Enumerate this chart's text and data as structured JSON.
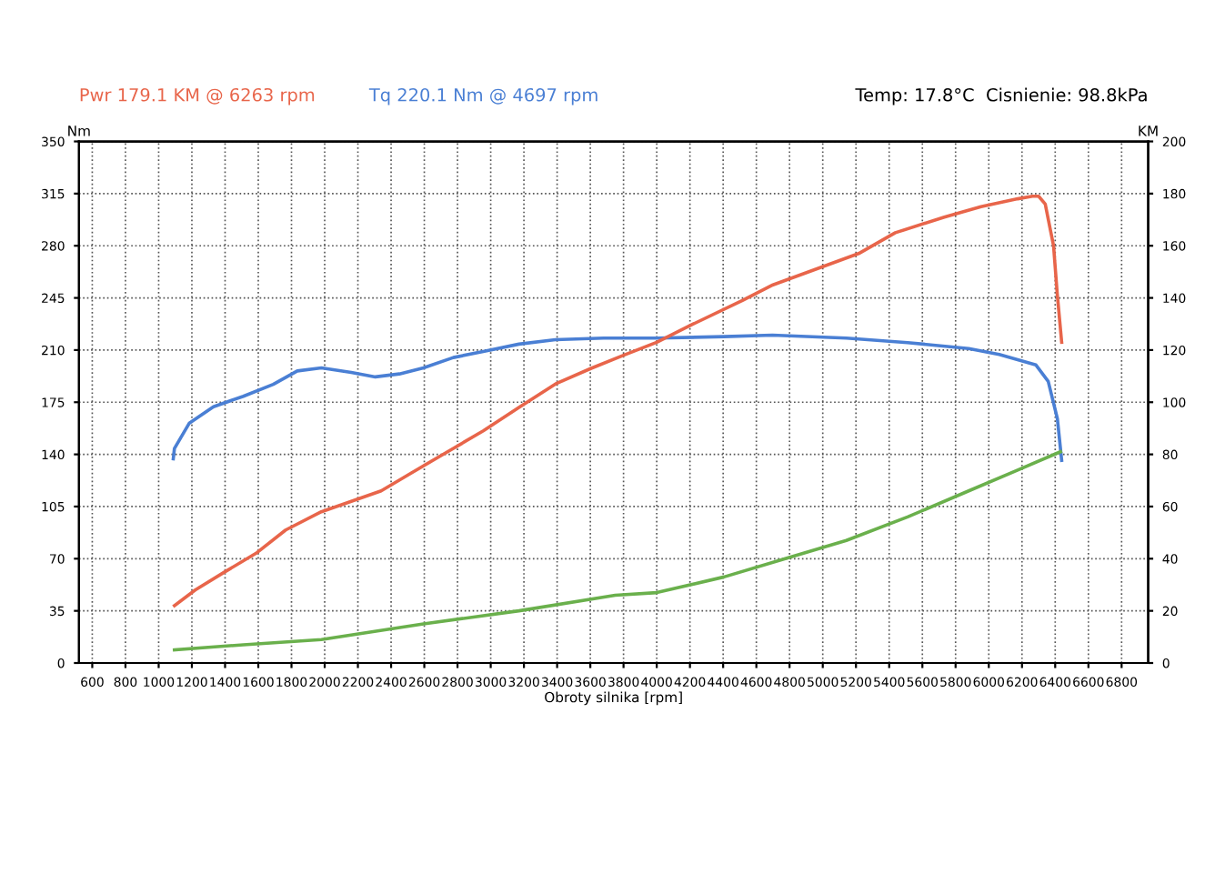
{
  "chart_data": {
    "type": "line",
    "xlabel": "Obroty silnika [rpm]",
    "ylabel": "Nm",
    "y2label": "KM",
    "annotations": [
      "Temp: 17.8°C  Cisnienie: 98.8kPa"
    ],
    "xlim": [
      520,
      6960
    ],
    "xticks": [
      600,
      800,
      1000,
      1200,
      1400,
      1600,
      1800,
      2000,
      2200,
      2400,
      2600,
      2800,
      3000,
      3200,
      3400,
      3600,
      3800,
      4000,
      4200,
      4400,
      4600,
      4800,
      5000,
      5200,
      5400,
      5600,
      5800,
      6000,
      6200,
      6400,
      6600,
      6800
    ],
    "ylim": [
      0,
      350
    ],
    "yticks": [
      0,
      35,
      70,
      105,
      140,
      175,
      210,
      245,
      280,
      315,
      350
    ],
    "y2lim": [
      0,
      200
    ],
    "y2ticks": [
      0,
      20,
      40,
      60,
      80,
      100,
      120,
      140,
      160,
      180,
      200
    ],
    "grid": true,
    "legend": "top left",
    "line_style": "solid",
    "marker": "none",
    "series": [
      {
        "name": "Pwr 179.1 KM @ 6263 rpm",
        "color": "#e8654a",
        "axis": "y2",
        "x": [
          1095,
          1220,
          1400,
          1585,
          1765,
          1980,
          2160,
          2340,
          2525,
          2740,
          2955,
          3170,
          3390,
          3605,
          3800,
          4000,
          4220,
          4516,
          4700,
          4958,
          5216,
          5437,
          5732,
          5953,
          6174,
          6263,
          6300,
          6340,
          6390,
          6413,
          6439
        ],
        "values": [
          22,
          28,
          35,
          42,
          51,
          58,
          62,
          66,
          73,
          81,
          89,
          98,
          107,
          113,
          118,
          123,
          130,
          139,
          145,
          151,
          157,
          165,
          171,
          175,
          178,
          179,
          179,
          176,
          160,
          141,
          123
        ]
      },
      {
        "name": "Tq 220.1 Nm @ 4697 rpm",
        "color": "#4a7fd4",
        "axis": "y",
        "x": [
          1088,
          1095,
          1185,
          1330,
          1510,
          1690,
          1835,
          1980,
          2160,
          2305,
          2450,
          2595,
          2775,
          2955,
          3170,
          3390,
          3680,
          4000,
          4405,
          4697,
          5142,
          5511,
          5879,
          6063,
          6284,
          6358,
          6413,
          6439
        ],
        "values": [
          137,
          144,
          161,
          172,
          179,
          187,
          196,
          198,
          195,
          192,
          194,
          198,
          205,
          209,
          214,
          217,
          218,
          218,
          219,
          220,
          218,
          215,
          211,
          207,
          200,
          189,
          164,
          136
        ]
      },
      {
        "color": "#6ab04c",
        "axis": "y2",
        "x": [
          1095,
          1510,
          1980,
          2595,
          3170,
          3750,
          4000,
          4405,
          4774,
          5142,
          5511,
          5879,
          6174,
          6432
        ],
        "values": [
          5,
          7,
          9,
          15,
          20,
          26,
          27,
          33,
          40,
          47,
          56,
          66,
          74,
          81
        ]
      }
    ]
  }
}
